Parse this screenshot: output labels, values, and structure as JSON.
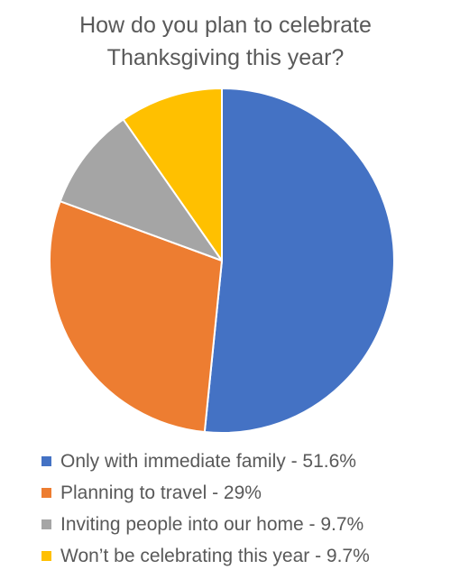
{
  "chart_data": {
    "type": "pie",
    "title_lines": [
      "How do you plan to celebrate",
      "Thanksgiving this year?"
    ],
    "start_angle_deg": 0,
    "direction": "clockwise",
    "slices": [
      {
        "label": "Only with immediate family - 51.6%",
        "value": 51.6,
        "color": "#4472C4"
      },
      {
        "label": "Planning to travel - 29%",
        "value": 29,
        "color": "#ED7D31"
      },
      {
        "label": "Inviting people into our home - 9.7%",
        "value": 9.7,
        "color": "#A5A5A5"
      },
      {
        "label": "Won’t be celebrating this year - 9.7%",
        "value": 9.7,
        "color": "#FFC000"
      }
    ],
    "legend": {
      "position": "bottom"
    }
  }
}
